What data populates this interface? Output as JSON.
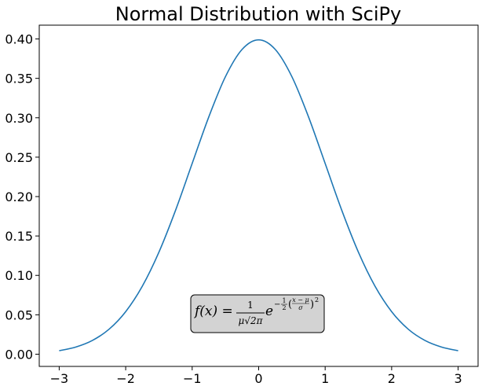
{
  "chart_data": {
    "type": "line",
    "title": "Normal Distribution with SciPy",
    "xlabel": "",
    "ylabel": "",
    "xlim": [
      -3.3,
      3.3
    ],
    "ylim": [
      -0.0155,
      0.4175
    ],
    "x_ticks": [
      -3,
      -2,
      -1,
      0,
      1,
      2,
      3
    ],
    "x_tick_labels": [
      "−3",
      "−2",
      "−1",
      "0",
      "1",
      "2",
      "3"
    ],
    "y_ticks": [
      0.0,
      0.05,
      0.1,
      0.15,
      0.2,
      0.25,
      0.3,
      0.35,
      0.4
    ],
    "y_tick_labels": [
      "0.00",
      "0.05",
      "0.10",
      "0.15",
      "0.20",
      "0.25",
      "0.30",
      "0.35",
      "0.40"
    ],
    "grid": false,
    "legend": "none",
    "series": [
      {
        "color": "#1f77b4",
        "x": [
          -3.0,
          -2.75,
          -2.5,
          -2.25,
          -2.0,
          -1.75,
          -1.5,
          -1.25,
          -1.0,
          -0.75,
          -0.5,
          -0.25,
          0.0,
          0.25,
          0.5,
          0.75,
          1.0,
          1.25,
          1.5,
          1.75,
          2.0,
          2.25,
          2.5,
          2.75,
          3.0
        ],
        "y": [
          0.0044,
          0.0091,
          0.0175,
          0.0317,
          0.054,
          0.0863,
          0.1295,
          0.1826,
          0.242,
          0.3011,
          0.3521,
          0.3867,
          0.3989,
          0.3867,
          0.3521,
          0.3011,
          0.242,
          0.1826,
          0.1295,
          0.0863,
          0.054,
          0.0317,
          0.0175,
          0.0091,
          0.0044
        ]
      }
    ],
    "annotation": {
      "f_part": "f(x) = ",
      "frac_num": "1",
      "frac_den": "μ√2π",
      "base": "e",
      "exp_sign": "−",
      "exp_half_num": "1",
      "exp_half_den": "2",
      "exp_inner_num": "x − μ",
      "exp_inner_den": "σ",
      "exp_power": "2",
      "box_color": "#d3d3d3"
    }
  }
}
